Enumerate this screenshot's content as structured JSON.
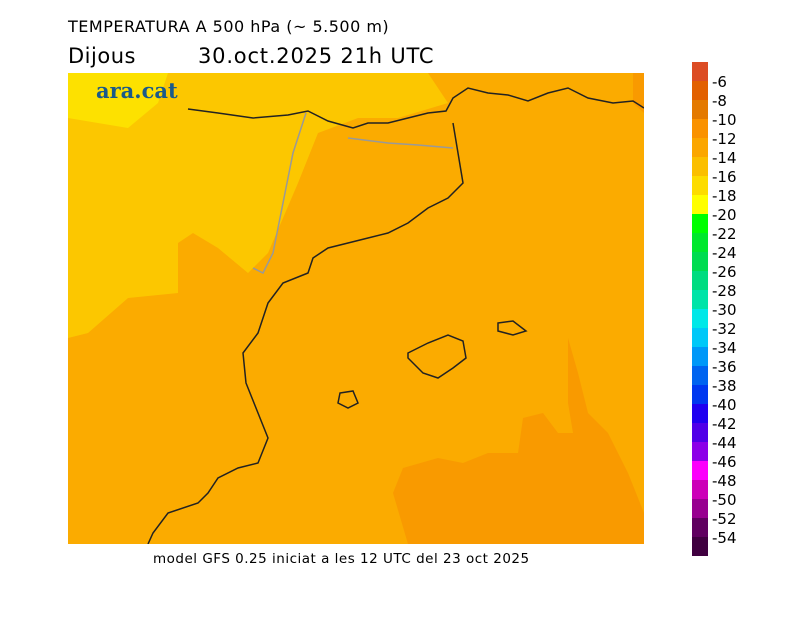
{
  "header": {
    "title": "TEMPERATURA A 500 hPa (~ 5.500 m)",
    "day": "Dijous",
    "date": "30.oct.2025 21h UTC"
  },
  "logo": "ara.cat",
  "footer": "model GFS 0.25 iniciat a les 12 UTC del 23 oct 2025",
  "legend": {
    "labels": [
      "-6",
      "-8",
      "-10",
      "-12",
      "-14",
      "-16",
      "-18",
      "-20",
      "-22",
      "-24",
      "-26",
      "-28",
      "-30",
      "-32",
      "-34",
      "-36",
      "-38",
      "-40",
      "-42",
      "-44",
      "-46",
      "-48",
      "-50",
      "-52",
      "-54"
    ],
    "colors": [
      "#dc4c24",
      "#e26000",
      "#e47a00",
      "#fa9200",
      "#fba600",
      "#fbbf00",
      "#fddc00",
      "#ffff00",
      "#00ff00",
      "#00e82c",
      "#00dc50",
      "#00dc80",
      "#00e4a8",
      "#00e8e8",
      "#00c8f8",
      "#0098f8",
      "#0064f0",
      "#0038f0",
      "#2000f0",
      "#5000e8",
      "#8c00e8",
      "#fc00fc",
      "#cc00b8",
      "#980090",
      "#600060",
      "#400040"
    ]
  },
  "map_colors": {
    "band_-18_-16": "#fde100",
    "band_-16_-14": "#fcc700",
    "band_-14_-12": "#fbab00",
    "band_-12_-10": "#f99a00"
  }
}
